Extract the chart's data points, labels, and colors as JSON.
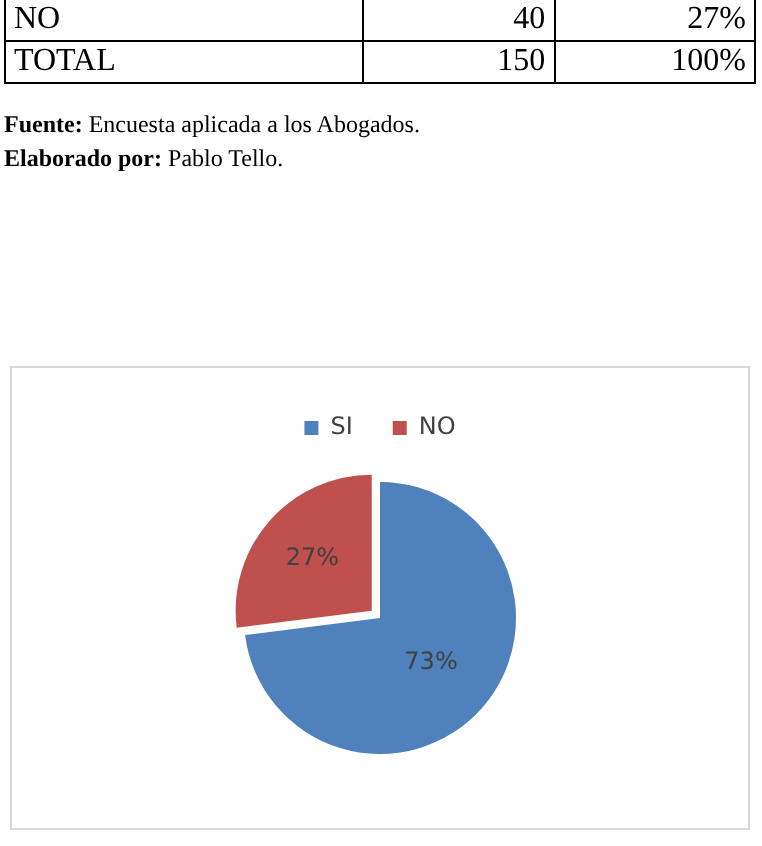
{
  "chart_data": {
    "type": "pie",
    "categories": [
      "SI",
      "NO"
    ],
    "values": [
      73,
      27
    ],
    "colors": [
      "#4f81bd",
      "#c0504d"
    ],
    "legend": "top",
    "value_labels": [
      "73%",
      "27%"
    ],
    "annotations": [
      "NO",
      "40",
      "27%",
      "TOTAL",
      "150",
      "100%",
      "Fuente: Encuesta aplicada a los Abogados.",
      "Elaborado por: Pablo Tello."
    ]
  }
}
